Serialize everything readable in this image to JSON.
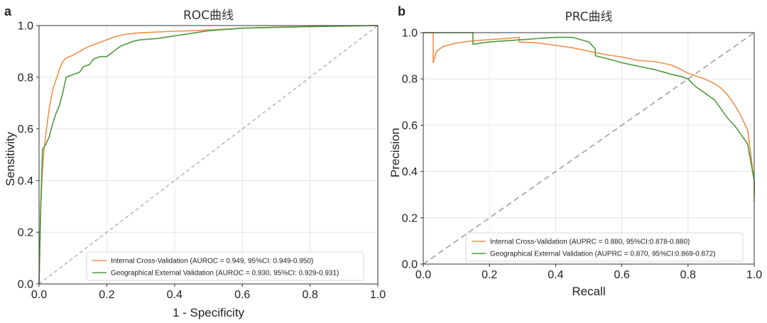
{
  "colors": {
    "internal": "#F0904A",
    "external": "#4E9A3E",
    "diagonal": "#AAAAAA",
    "grid": "#E6E6E6",
    "frame": "#333333"
  },
  "chart_data": [
    {
      "panel_label": "a",
      "type": "line",
      "title": "ROC曲线",
      "xlabel": "1 - Specificity",
      "ylabel": "Sensitivity",
      "xlim": [
        0.0,
        1.0
      ],
      "ylim": [
        0.0,
        1.0
      ],
      "grid": true,
      "legend_position": "bottom-right",
      "xticks": [
        "0.0",
        "0.2",
        "0.4",
        "0.6",
        "0.8",
        "1.0"
      ],
      "yticks": [
        "0.0",
        "0.2",
        "0.4",
        "0.6",
        "0.8",
        "1.0"
      ],
      "reference_line": [
        [
          0,
          0
        ],
        [
          1,
          1
        ]
      ],
      "series": [
        {
          "name": "Internal Cross-Validation (AUROC = 0.949, 95%CI: 0.949-0.950)",
          "color_key": "internal",
          "step": false,
          "x": [
            0.0,
            0.005,
            0.01,
            0.015,
            0.02,
            0.03,
            0.04,
            0.05,
            0.06,
            0.07,
            0.08,
            0.1,
            0.12,
            0.14,
            0.16,
            0.18,
            0.2,
            0.22,
            0.25,
            0.28,
            0.3,
            0.35,
            0.4,
            0.45,
            0.5,
            0.55,
            0.6,
            0.65,
            0.7,
            0.8,
            0.9,
            1.0
          ],
          "y": [
            0.0,
            0.3,
            0.44,
            0.52,
            0.58,
            0.68,
            0.75,
            0.79,
            0.83,
            0.86,
            0.875,
            0.885,
            0.9,
            0.915,
            0.925,
            0.935,
            0.945,
            0.955,
            0.965,
            0.97,
            0.972,
            0.975,
            0.978,
            0.98,
            0.983,
            0.986,
            0.99,
            0.992,
            0.994,
            0.996,
            0.998,
            1.0
          ]
        },
        {
          "name": "Geographical External Validation (AUROC = 0.930, 95%CI: 0.929-0.931)",
          "color_key": "external",
          "step": false,
          "x": [
            0.0,
            0.005,
            0.01,
            0.02,
            0.03,
            0.04,
            0.05,
            0.06,
            0.07,
            0.08,
            0.1,
            0.12,
            0.13,
            0.15,
            0.16,
            0.18,
            0.2,
            0.22,
            0.24,
            0.26,
            0.28,
            0.3,
            0.35,
            0.4,
            0.45,
            0.5,
            0.55,
            0.6,
            0.7,
            0.8,
            0.9,
            1.0
          ],
          "y": [
            0.0,
            0.3,
            0.52,
            0.54,
            0.57,
            0.62,
            0.66,
            0.69,
            0.74,
            0.8,
            0.81,
            0.82,
            0.84,
            0.85,
            0.87,
            0.88,
            0.88,
            0.9,
            0.92,
            0.93,
            0.94,
            0.945,
            0.95,
            0.96,
            0.97,
            0.98,
            0.985,
            0.99,
            0.993,
            0.996,
            0.998,
            1.0
          ]
        }
      ]
    },
    {
      "panel_label": "b",
      "type": "line",
      "title": "PRC曲线",
      "xlabel": "Recall",
      "ylabel": "Precision",
      "xlim": [
        0.0,
        1.0
      ],
      "ylim": [
        0.0,
        1.0
      ],
      "grid": true,
      "legend_position": "bottom-right",
      "xticks": [
        "0.0",
        "0.2",
        "0.4",
        "0.6",
        "0.8",
        "1.0"
      ],
      "yticks": [
        "0.0",
        "0.2",
        "0.4",
        "0.6",
        "0.8",
        "1.0"
      ],
      "reference_line": [
        [
          0,
          0
        ],
        [
          1,
          1
        ]
      ],
      "series": [
        {
          "name": "Internal Cross-Validation (AUPRC = 0.880, 95%CI:0.878-0.880)",
          "color_key": "internal",
          "step": true,
          "x": [
            0.0,
            0.03,
            0.03,
            0.04,
            0.06,
            0.1,
            0.15,
            0.2,
            0.25,
            0.29,
            0.29,
            0.35,
            0.4,
            0.45,
            0.5,
            0.55,
            0.6,
            0.65,
            0.7,
            0.75,
            0.78,
            0.8,
            0.85,
            0.88,
            0.9,
            0.92,
            0.94,
            0.96,
            0.98,
            0.99,
            1.0,
            1.0
          ],
          "y": [
            1.0,
            1.0,
            0.87,
            0.92,
            0.94,
            0.955,
            0.965,
            0.97,
            0.975,
            0.98,
            0.96,
            0.955,
            0.945,
            0.935,
            0.92,
            0.905,
            0.895,
            0.88,
            0.875,
            0.86,
            0.84,
            0.825,
            0.8,
            0.78,
            0.76,
            0.73,
            0.69,
            0.64,
            0.58,
            0.47,
            0.36,
            0.27
          ]
        },
        {
          "name": "Geographical External Validation (AUPRC = 0.870, 95%CI:0.869-0.872)",
          "color_key": "external",
          "step": true,
          "x": [
            0.0,
            0.15,
            0.15,
            0.2,
            0.3,
            0.4,
            0.45,
            0.5,
            0.52,
            0.52,
            0.55,
            0.6,
            0.65,
            0.7,
            0.75,
            0.78,
            0.8,
            0.82,
            0.85,
            0.88,
            0.9,
            0.92,
            0.94,
            0.96,
            0.98,
            0.99,
            1.0,
            1.0
          ],
          "y": [
            1.0,
            1.0,
            0.95,
            0.96,
            0.97,
            0.98,
            0.98,
            0.96,
            0.93,
            0.9,
            0.89,
            0.87,
            0.855,
            0.84,
            0.82,
            0.81,
            0.8,
            0.77,
            0.74,
            0.71,
            0.67,
            0.63,
            0.6,
            0.56,
            0.52,
            0.44,
            0.36,
            0.3
          ]
        }
      ]
    }
  ]
}
